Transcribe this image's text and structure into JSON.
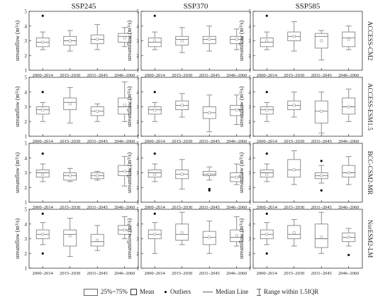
{
  "chart_data": {
    "type": "box",
    "columns": [
      "SSP245",
      "SSP370",
      "SSP585"
    ],
    "rows": [
      "ACCESS-CM2",
      "ACCESS-ESM1.5",
      "BCC-CSM2-MR",
      "NorESM2-LM"
    ],
    "periods": [
      "2000–2014",
      "2015–2030",
      "2031–2045",
      "2046–2060"
    ],
    "ylabel": "streamflow (m³/s)",
    "ylim": [
      1,
      5
    ],
    "yticks": [
      1,
      2,
      3,
      4,
      5
    ],
    "panels": [
      {
        "row": "ACCESS-CM2",
        "column": "SSP245",
        "boxes": [
          {
            "period": "2000–2014",
            "whisker_low": 2.4,
            "q1": 2.6,
            "median": 2.9,
            "q3": 3.2,
            "whisker_high": 3.6,
            "mean": 2.9,
            "outliers": [
              4.7
            ]
          },
          {
            "period": "2015–2030",
            "whisker_low": 2.3,
            "q1": 2.7,
            "median": 3.0,
            "q3": 3.3,
            "whisker_high": 3.7,
            "mean": 3.0,
            "outliers": []
          },
          {
            "period": "2031–2045",
            "whisker_low": 2.4,
            "q1": 2.8,
            "median": 3.1,
            "q3": 3.4,
            "whisker_high": 4.1,
            "mean": 3.1,
            "outliers": []
          },
          {
            "period": "2046–2060",
            "whisker_low": 2.6,
            "q1": 2.9,
            "median": 3.3,
            "q3": 3.5,
            "whisker_high": 3.9,
            "mean": 3.2,
            "outliers": []
          }
        ]
      },
      {
        "row": "ACCESS-CM2",
        "column": "SSP370",
        "boxes": [
          {
            "period": "2000–2014",
            "whisker_low": 2.4,
            "q1": 2.6,
            "median": 2.9,
            "q3": 3.2,
            "whisker_high": 3.6,
            "mean": 3.0,
            "outliers": [
              4.7
            ]
          },
          {
            "period": "2015–2030",
            "whisker_low": 2.2,
            "q1": 2.7,
            "median": 3.1,
            "q3": 3.3,
            "whisker_high": 3.9,
            "mean": 3.0,
            "outliers": []
          },
          {
            "period": "2031–2045",
            "whisker_low": 2.3,
            "q1": 2.8,
            "median": 3.1,
            "q3": 3.3,
            "whisker_high": 4.0,
            "mean": 3.1,
            "outliers": []
          },
          {
            "period": "2046–2060",
            "whisker_low": 2.4,
            "q1": 2.8,
            "median": 3.1,
            "q3": 3.3,
            "whisker_high": 3.8,
            "mean": 3.1,
            "outliers": []
          }
        ]
      },
      {
        "row": "ACCESS-CM2",
        "column": "SSP585",
        "boxes": [
          {
            "period": "2000–2014",
            "whisker_low": 2.4,
            "q1": 2.6,
            "median": 2.9,
            "q3": 3.2,
            "whisker_high": 3.6,
            "mean": 3.0,
            "outliers": [
              4.7
            ]
          },
          {
            "period": "2015–2030",
            "whisker_low": 2.3,
            "q1": 3.0,
            "median": 3.3,
            "q3": 3.6,
            "whisker_high": 4.3,
            "mean": 3.3,
            "outliers": []
          },
          {
            "period": "2031–2045",
            "whisker_low": 1.7,
            "q1": 2.5,
            "median": 3.3,
            "q3": 3.5,
            "whisker_high": 3.7,
            "mean": 3.0,
            "outliers": []
          },
          {
            "period": "2046–2060",
            "whisker_low": 2.4,
            "q1": 2.6,
            "median": 3.2,
            "q3": 3.6,
            "whisker_high": 4.0,
            "mean": 3.1,
            "outliers": []
          }
        ]
      },
      {
        "row": "ACCESS-ESM1.5",
        "column": "SSP245",
        "boxes": [
          {
            "period": "2000–2014",
            "whisker_low": 2.0,
            "q1": 2.5,
            "median": 2.8,
            "q3": 3.0,
            "whisker_high": 3.3,
            "mean": 2.8,
            "outliers": [
              4.0
            ]
          },
          {
            "period": "2015–2030",
            "whisker_low": 1.9,
            "q1": 2.8,
            "median": 3.3,
            "q3": 3.6,
            "whisker_high": 4.3,
            "mean": 3.2,
            "outliers": []
          },
          {
            "period": "2031–2045",
            "whisker_low": 2.0,
            "q1": 2.4,
            "median": 2.7,
            "q3": 3.0,
            "whisker_high": 3.2,
            "mean": 2.7,
            "outliers": []
          },
          {
            "period": "2046–2060",
            "whisker_low": 2.0,
            "q1": 2.5,
            "median": 3.0,
            "q3": 3.6,
            "whisker_high": 4.7,
            "mean": 3.1,
            "outliers": []
          }
        ]
      },
      {
        "row": "ACCESS-ESM1.5",
        "column": "SSP370",
        "boxes": [
          {
            "period": "2000–2014",
            "whisker_low": 2.0,
            "q1": 2.5,
            "median": 2.8,
            "q3": 3.0,
            "whisker_high": 3.3,
            "mean": 2.8,
            "outliers": [
              4.0
            ]
          },
          {
            "period": "2015–2030",
            "whisker_low": 2.3,
            "q1": 2.8,
            "median": 3.1,
            "q3": 3.4,
            "whisker_high": 3.9,
            "mean": 3.1,
            "outliers": []
          },
          {
            "period": "2031–2045",
            "whisker_low": 1.3,
            "q1": 2.2,
            "median": 2.6,
            "q3": 3.0,
            "whisker_high": 3.8,
            "mean": 2.6,
            "outliers": []
          },
          {
            "period": "2046–2060",
            "whisker_low": 1.8,
            "q1": 2.4,
            "median": 2.8,
            "q3": 3.1,
            "whisker_high": 3.8,
            "mean": 2.8,
            "outliers": []
          }
        ]
      },
      {
        "row": "ACCESS-ESM1.5",
        "column": "SSP585",
        "boxes": [
          {
            "period": "2000–2014",
            "whisker_low": 2.0,
            "q1": 2.5,
            "median": 2.8,
            "q3": 3.0,
            "whisker_high": 3.3,
            "mean": 2.8,
            "outliers": [
              4.0
            ]
          },
          {
            "period": "2015–2030",
            "whisker_low": 2.3,
            "q1": 2.8,
            "median": 3.1,
            "q3": 3.4,
            "whisker_high": 4.0,
            "mean": 3.1,
            "outliers": []
          },
          {
            "period": "2031–2045",
            "whisker_low": 1.2,
            "q1": 1.9,
            "median": 2.7,
            "q3": 3.4,
            "whisker_high": 4.0,
            "mean": 2.7,
            "outliers": []
          },
          {
            "period": "2046–2060",
            "whisker_low": 2.0,
            "q1": 2.5,
            "median": 3.0,
            "q3": 3.6,
            "whisker_high": 4.2,
            "mean": 3.0,
            "outliers": []
          }
        ]
      },
      {
        "row": "BCC-CSM2-MR",
        "column": "SSP245",
        "boxes": [
          {
            "period": "2000–2014",
            "whisker_low": 2.4,
            "q1": 2.7,
            "median": 3.0,
            "q3": 3.2,
            "whisker_high": 3.6,
            "mean": 2.9,
            "outliers": [
              4.3
            ]
          },
          {
            "period": "2015–2030",
            "whisker_low": 2.4,
            "q1": 2.5,
            "median": 2.8,
            "q3": 3.0,
            "whisker_high": 3.3,
            "mean": 2.8,
            "outliers": []
          },
          {
            "period": "2031–2045",
            "whisker_low": 2.5,
            "q1": 2.6,
            "median": 2.8,
            "q3": 3.0,
            "whisker_high": 3.1,
            "mean": 2.8,
            "outliers": []
          },
          {
            "period": "2046–2060",
            "whisker_low": 2.1,
            "q1": 2.8,
            "median": 3.1,
            "q3": 3.5,
            "whisker_high": 4.1,
            "mean": 3.1,
            "outliers": []
          }
        ]
      },
      {
        "row": "BCC-CSM2-MR",
        "column": "SSP370",
        "boxes": [
          {
            "period": "2000–2014",
            "whisker_low": 2.4,
            "q1": 2.7,
            "median": 3.0,
            "q3": 3.2,
            "whisker_high": 3.6,
            "mean": 2.9,
            "outliers": [
              4.3
            ]
          },
          {
            "period": "2015–2030",
            "whisker_low": 1.9,
            "q1": 2.6,
            "median": 2.9,
            "q3": 3.2,
            "whisker_high": 3.9,
            "mean": 2.9,
            "outliers": []
          },
          {
            "period": "2031–2045",
            "whisker_low": 2.5,
            "q1": 2.8,
            "median": 2.9,
            "q3": 3.1,
            "whisker_high": 3.4,
            "mean": 2.9,
            "outliers": [
              1.9,
              1.8
            ]
          },
          {
            "period": "2046–2060",
            "whisker_low": 2.2,
            "q1": 2.4,
            "median": 2.7,
            "q3": 3.0,
            "whisker_high": 3.6,
            "mean": 2.7,
            "outliers": []
          }
        ]
      },
      {
        "row": "BCC-CSM2-MR",
        "column": "SSP585",
        "boxes": [
          {
            "period": "2000–2014",
            "whisker_low": 2.4,
            "q1": 2.7,
            "median": 3.0,
            "q3": 3.2,
            "whisker_high": 3.6,
            "mean": 2.9,
            "outliers": [
              4.3
            ]
          },
          {
            "period": "2015–2030",
            "whisker_low": 2.2,
            "q1": 2.7,
            "median": 3.2,
            "q3": 3.9,
            "whisker_high": 4.5,
            "mean": 3.2,
            "outliers": []
          },
          {
            "period": "2031–2045",
            "whisker_low": 2.3,
            "q1": 2.6,
            "median": 2.8,
            "q3": 3.0,
            "whisker_high": 3.5,
            "mean": 2.8,
            "outliers": [
              3.8,
              1.8
            ]
          },
          {
            "period": "2046–2060",
            "whisker_low": 2.2,
            "q1": 2.7,
            "median": 3.0,
            "q3": 3.5,
            "whisker_high": 4.1,
            "mean": 3.0,
            "outliers": []
          }
        ]
      },
      {
        "row": "NorESM2-LM",
        "column": "SSP245",
        "boxes": [
          {
            "period": "2000–2014",
            "whisker_low": 2.6,
            "q1": 3.0,
            "median": 3.3,
            "q3": 3.6,
            "whisker_high": 4.1,
            "mean": 3.3,
            "outliers": [
              4.7,
              2.0
            ]
          },
          {
            "period": "2015–2030",
            "whisker_low": 1.8,
            "q1": 2.5,
            "median": 3.3,
            "q3": 3.6,
            "whisker_high": 4.4,
            "mean": 3.2,
            "outliers": []
          },
          {
            "period": "2031–2045",
            "whisker_low": 2.2,
            "q1": 2.5,
            "median": 2.8,
            "q3": 3.3,
            "whisker_high": 3.9,
            "mean": 2.9,
            "outliers": []
          },
          {
            "period": "2046–2060",
            "whisker_low": 3.0,
            "q1": 3.3,
            "median": 3.6,
            "q3": 3.9,
            "whisker_high": 4.5,
            "mean": 3.6,
            "outliers": []
          }
        ]
      },
      {
        "row": "NorESM2-LM",
        "column": "SSP370",
        "boxes": [
          {
            "period": "2000–2014",
            "whisker_low": 2.0,
            "q1": 3.0,
            "median": 3.3,
            "q3": 3.6,
            "whisker_high": 4.1,
            "mean": 3.3,
            "outliers": [
              4.7
            ]
          },
          {
            "period": "2015–2030",
            "whisker_low": 2.6,
            "q1": 2.9,
            "median": 3.3,
            "q3": 4.0,
            "whisker_high": 4.8,
            "mean": 3.4,
            "outliers": []
          },
          {
            "period": "2031–2045",
            "whisker_low": 2.0,
            "q1": 2.6,
            "median": 3.1,
            "q3": 3.5,
            "whisker_high": 4.2,
            "mean": 3.1,
            "outliers": []
          },
          {
            "period": "2046–2060",
            "whisker_low": 2.5,
            "q1": 2.8,
            "median": 3.1,
            "q3": 3.6,
            "whisker_high": 4.5,
            "mean": 3.2,
            "outliers": []
          }
        ]
      },
      {
        "row": "NorESM2-LM",
        "column": "SSP585",
        "boxes": [
          {
            "period": "2000–2014",
            "whisker_low": 2.6,
            "q1": 3.0,
            "median": 3.3,
            "q3": 3.6,
            "whisker_high": 4.1,
            "mean": 3.3,
            "outliers": [
              4.7,
              2.0
            ]
          },
          {
            "period": "2015–2030",
            "whisker_low": 2.5,
            "q1": 3.0,
            "median": 3.3,
            "q3": 3.9,
            "whisker_high": 4.3,
            "mean": 3.4,
            "outliers": []
          },
          {
            "period": "2031–2045",
            "whisker_low": 2.0,
            "q1": 2.4,
            "median": 3.0,
            "q3": 4.0,
            "whisker_high": 4.8,
            "mean": 3.1,
            "outliers": []
          },
          {
            "period": "2046–2060",
            "whisker_low": 2.5,
            "q1": 2.8,
            "median": 3.1,
            "q3": 3.4,
            "whisker_high": 3.7,
            "mean": 3.1,
            "outliers": [
              1.9
            ]
          }
        ]
      }
    ]
  },
  "legend": {
    "box_label": "25%~75%",
    "mean_label": "Mean",
    "outlier_label": "Outliers",
    "median_label": "Median Line",
    "range_label": "Range within 1.5IQR"
  },
  "colors": {
    "box_stroke": "#777777",
    "median": "#777777",
    "outlier": "#111111",
    "axis": "#333333"
  }
}
